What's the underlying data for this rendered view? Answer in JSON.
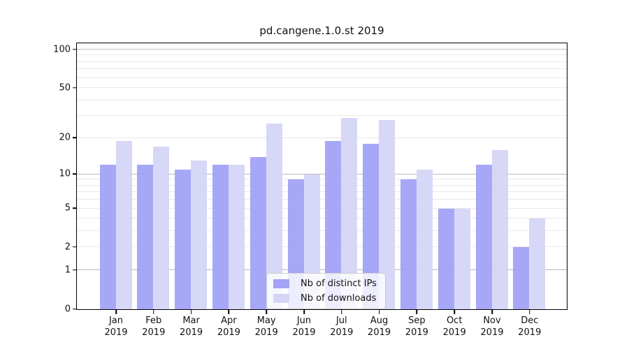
{
  "chart_data": {
    "type": "bar",
    "title": "pd.cangene.1.0.st 2019",
    "x_tick_labels": [
      {
        "month": "Jan",
        "year": "2019"
      },
      {
        "month": "Feb",
        "year": "2019"
      },
      {
        "month": "Mar",
        "year": "2019"
      },
      {
        "month": "Apr",
        "year": "2019"
      },
      {
        "month": "May",
        "year": "2019"
      },
      {
        "month": "Jun",
        "year": "2019"
      },
      {
        "month": "Jul",
        "year": "2019"
      },
      {
        "month": "Aug",
        "year": "2019"
      },
      {
        "month": "Sep",
        "year": "2019"
      },
      {
        "month": "Oct",
        "year": "2019"
      },
      {
        "month": "Nov",
        "year": "2019"
      },
      {
        "month": "Dec",
        "year": "2019"
      }
    ],
    "series": [
      {
        "name": "Nb of distinct IPs",
        "color": "#a2a2f7",
        "values": [
          12,
          12,
          11,
          12,
          14,
          9,
          19,
          18,
          9,
          5,
          12,
          2
        ]
      },
      {
        "name": "Nb of downloads",
        "color": "#d5d5f7",
        "values": [
          19,
          17,
          13,
          12,
          26,
          10,
          29,
          28,
          11,
          5,
          16,
          4
        ]
      }
    ],
    "y_axis": {
      "scale": "log1p",
      "ticks": [
        0,
        1,
        2,
        5,
        10,
        20,
        50,
        100
      ],
      "ylim": [
        0,
        100
      ],
      "grid_minor_lines": [
        2,
        3,
        4,
        5,
        6,
        7,
        8,
        9,
        20,
        30,
        40,
        50,
        60,
        70,
        80,
        90
      ],
      "grid_major_lines": [
        1,
        10,
        100
      ]
    },
    "legend": {
      "position": "lower center inside"
    },
    "colors": {
      "background": "#ffffff",
      "axis": "#000000",
      "grid_minor": "#e9e9e9",
      "grid_major": "#b9b9b9",
      "text": "#111111"
    }
  }
}
